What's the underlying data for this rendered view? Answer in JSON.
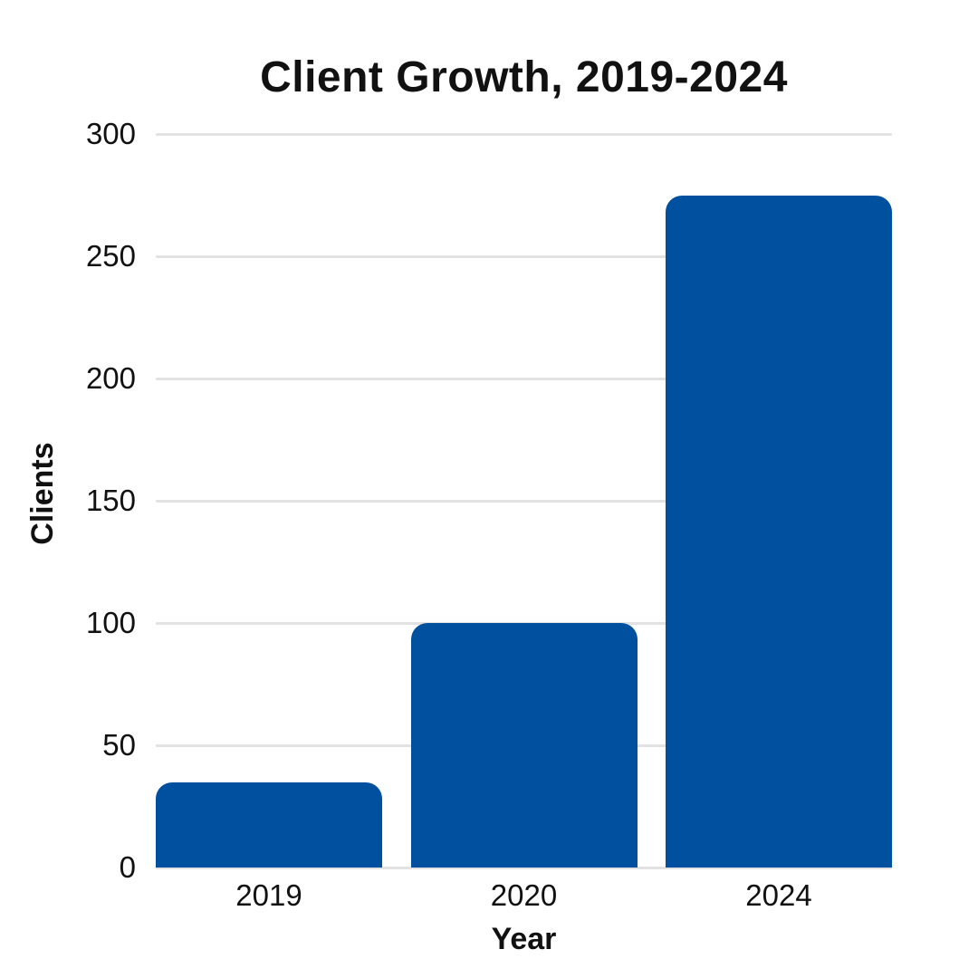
{
  "page": {
    "background_color": "#ffffff",
    "text_color": "#111111"
  },
  "chart_data": {
    "type": "bar",
    "title": "Client Growth, 2019-2024",
    "xlabel": "Year",
    "ylabel": "Clients",
    "categories": [
      "2019",
      "2020",
      "2024"
    ],
    "values": [
      35,
      100,
      275
    ],
    "ylim": [
      0,
      300
    ],
    "yticks": [
      0,
      50,
      100,
      150,
      200,
      250,
      300
    ],
    "grid": "horizontal",
    "legend": "none",
    "bar_color": "#0050a0",
    "gridline_color": "#e2e2e2",
    "text_color": "#111111"
  }
}
